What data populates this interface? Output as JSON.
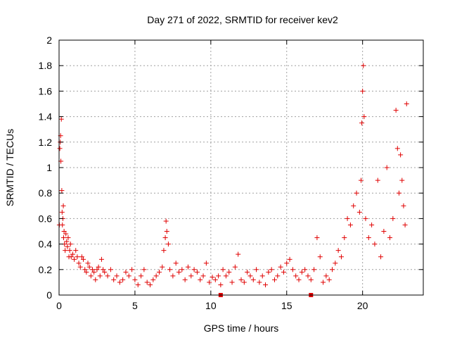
{
  "chart_data": {
    "type": "scatter",
    "title": "Day 271 of 2022, SRMTID for receiver kev2",
    "xlabel": "GPS time / hours",
    "ylabel": "SRMTID / TECUs",
    "xlim": [
      0,
      24
    ],
    "ylim": [
      0,
      2
    ],
    "xticks": [
      0,
      5,
      10,
      15,
      20
    ],
    "xtick_labels": [
      "0",
      "5",
      "10",
      "15",
      "20"
    ],
    "yticks": [
      0,
      0.2,
      0.4,
      0.6,
      0.8,
      1,
      1.2,
      1.4,
      1.6,
      1.8,
      2
    ],
    "ytick_labels": [
      "0",
      "0.2",
      "0.4",
      "0.6",
      "0.8",
      "1",
      "1.2",
      "1.4",
      "1.6",
      "1.8",
      "2"
    ],
    "grid": true,
    "marker": "+",
    "color": "#e00000",
    "series": [
      {
        "name": "SRMTID",
        "x": [
          0.02,
          0.05,
          0.08,
          0.1,
          0.12,
          0.15,
          0.18,
          0.2,
          0.22,
          0.25,
          0.28,
          0.3,
          0.33,
          0.36,
          0.4,
          0.45,
          0.5,
          0.55,
          0.6,
          0.65,
          0.7,
          0.75,
          0.8,
          0.9,
          1.0,
          1.1,
          1.2,
          1.3,
          1.4,
          1.5,
          1.6,
          1.7,
          1.8,
          1.9,
          2.0,
          2.1,
          2.2,
          2.3,
          2.4,
          2.5,
          2.6,
          2.7,
          2.8,
          2.9,
          3.0,
          3.2,
          3.4,
          3.6,
          3.8,
          4.0,
          4.2,
          4.4,
          4.6,
          4.8,
          5.0,
          5.2,
          5.4,
          5.6,
          5.8,
          6.0,
          6.2,
          6.4,
          6.6,
          6.8,
          6.9,
          7.0,
          7.05,
          7.1,
          7.2,
          7.3,
          7.5,
          7.7,
          7.9,
          8.1,
          8.3,
          8.5,
          8.7,
          8.9,
          9.1,
          9.3,
          9.5,
          9.7,
          9.9,
          10.1,
          10.3,
          10.5,
          10.65,
          10.8,
          11.0,
          11.2,
          11.4,
          11.6,
          11.8,
          12.0,
          12.2,
          12.4,
          12.6,
          12.8,
          13.0,
          13.2,
          13.4,
          13.6,
          13.8,
          14.0,
          14.2,
          14.4,
          14.6,
          14.8,
          15.0,
          15.2,
          15.4,
          15.6,
          15.8,
          16.0,
          16.2,
          16.4,
          16.6,
          16.8,
          17.0,
          17.2,
          17.4,
          17.6,
          17.8,
          18.0,
          18.2,
          18.4,
          18.6,
          18.8,
          19.0,
          19.2,
          19.4,
          19.6,
          19.8,
          19.9,
          19.95,
          20.0,
          20.05,
          20.1,
          20.2,
          20.4,
          20.6,
          20.8,
          21.0,
          21.2,
          21.4,
          21.6,
          21.8,
          22.0,
          22.2,
          22.3,
          22.4,
          22.5,
          22.6,
          22.7,
          22.8,
          22.9
        ],
        "y": [
          0.55,
          1.15,
          1.2,
          1.25,
          1.05,
          1.38,
          0.82,
          0.65,
          0.55,
          0.6,
          0.7,
          0.45,
          0.5,
          0.4,
          0.35,
          0.48,
          0.42,
          0.38,
          0.45,
          0.3,
          0.35,
          0.4,
          0.3,
          0.32,
          0.28,
          0.35,
          0.3,
          0.25,
          0.22,
          0.3,
          0.28,
          0.2,
          0.18,
          0.25,
          0.22,
          0.15,
          0.2,
          0.18,
          0.12,
          0.2,
          0.22,
          0.15,
          0.28,
          0.2,
          0.18,
          0.15,
          0.2,
          0.12,
          0.15,
          0.1,
          0.12,
          0.18,
          0.15,
          0.2,
          0.12,
          0.08,
          0.15,
          0.2,
          0.1,
          0.08,
          0.12,
          0.15,
          0.18,
          0.22,
          0.35,
          0.45,
          0.58,
          0.5,
          0.4,
          0.2,
          0.15,
          0.25,
          0.18,
          0.2,
          0.12,
          0.22,
          0.15,
          0.2,
          0.18,
          0.12,
          0.15,
          0.25,
          0.1,
          0.14,
          0.12,
          0.15,
          0.08,
          0.2,
          0.15,
          0.18,
          0.1,
          0.22,
          0.32,
          0.12,
          0.1,
          0.18,
          0.15,
          0.12,
          0.2,
          0.1,
          0.15,
          0.08,
          0.18,
          0.2,
          0.12,
          0.15,
          0.22,
          0.18,
          0.25,
          0.28,
          0.2,
          0.15,
          0.12,
          0.18,
          0.2,
          0.15,
          0.12,
          0.2,
          0.45,
          0.3,
          0.1,
          0.15,
          0.12,
          0.2,
          0.25,
          0.35,
          0.3,
          0.45,
          0.6,
          0.55,
          0.7,
          0.8,
          0.65,
          0.9,
          1.35,
          1.6,
          1.8,
          1.4,
          0.6,
          0.45,
          0.55,
          0.4,
          0.9,
          0.3,
          0.5,
          1.0,
          0.45,
          0.6,
          1.45,
          1.15,
          0.8,
          1.1,
          0.9,
          0.7,
          0.55,
          1.5
        ]
      }
    ],
    "x_markers": [
      10.65,
      16.6
    ]
  }
}
